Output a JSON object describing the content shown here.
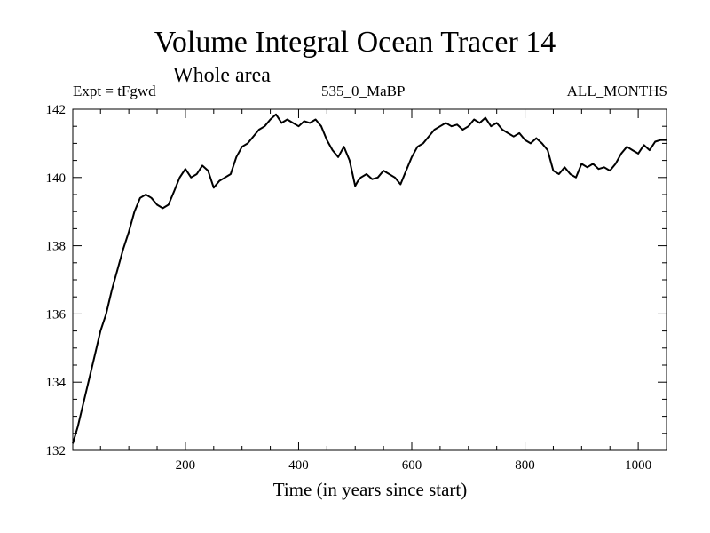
{
  "chart_data": {
    "type": "line",
    "title": "Volume Integral Ocean Tracer 14",
    "subtitle": "Whole area",
    "header_left": "Expt = tFgwd",
    "header_center": "535_0_MaBP",
    "header_right": "ALL_MONTHS",
    "xlabel": "Time (in years since start)",
    "ylabel": "",
    "xlim": [
      1,
      1050
    ],
    "ylim": [
      132,
      142
    ],
    "xticks": [
      200,
      400,
      600,
      800,
      1000
    ],
    "yticks": [
      132,
      134,
      136,
      138,
      140,
      142
    ],
    "grid": false,
    "legend": "none",
    "line_color": "#000000",
    "series": [
      {
        "x": [
          1,
          10,
          20,
          30,
          40,
          50,
          60,
          70,
          80,
          90,
          100,
          110,
          120,
          130,
          140,
          150,
          160,
          170,
          180,
          190,
          200,
          210,
          220,
          230,
          240,
          250,
          260,
          270,
          280,
          290,
          300,
          310,
          320,
          330,
          340,
          350,
          360,
          370,
          380,
          390,
          400,
          410,
          420,
          430,
          440,
          450,
          460,
          470,
          480,
          490,
          500,
          505,
          510,
          520,
          530,
          540,
          550,
          560,
          570,
          580,
          590,
          600,
          610,
          620,
          630,
          640,
          650,
          660,
          670,
          680,
          690,
          700,
          710,
          720,
          730,
          740,
          750,
          760,
          770,
          780,
          790,
          800,
          810,
          820,
          830,
          840,
          850,
          860,
          870,
          880,
          890,
          900,
          910,
          920,
          930,
          940,
          950,
          960,
          970,
          980,
          990,
          1000,
          1010,
          1020,
          1030,
          1040,
          1050
        ],
        "y": [
          132.2,
          132.7,
          133.4,
          134.1,
          134.8,
          135.5,
          136.0,
          136.7,
          137.3,
          137.9,
          138.4,
          139.0,
          139.4,
          139.5,
          139.4,
          139.2,
          139.1,
          139.2,
          139.6,
          140.0,
          140.25,
          140.0,
          140.1,
          140.35,
          140.2,
          139.7,
          139.9,
          140.0,
          140.1,
          140.6,
          140.9,
          141.0,
          141.2,
          141.4,
          141.5,
          141.7,
          141.85,
          141.6,
          141.7,
          141.6,
          141.5,
          141.65,
          141.6,
          141.7,
          141.5,
          141.1,
          140.8,
          140.6,
          140.9,
          140.5,
          139.75,
          139.9,
          140.0,
          140.1,
          139.95,
          140.0,
          140.2,
          140.1,
          140.0,
          139.8,
          140.2,
          140.6,
          140.9,
          141.0,
          141.2,
          141.4,
          141.5,
          141.6,
          141.5,
          141.55,
          141.4,
          141.5,
          141.7,
          141.6,
          141.75,
          141.5,
          141.6,
          141.4,
          141.3,
          141.2,
          141.3,
          141.1,
          141.0,
          141.15,
          141.0,
          140.8,
          140.2,
          140.1,
          140.3,
          140.1,
          140.0,
          140.4,
          140.3,
          140.4,
          140.25,
          140.3,
          140.2,
          140.4,
          140.7,
          140.9,
          140.8,
          140.7,
          140.95,
          140.8,
          141.05,
          141.1,
          141.1
        ]
      }
    ]
  }
}
